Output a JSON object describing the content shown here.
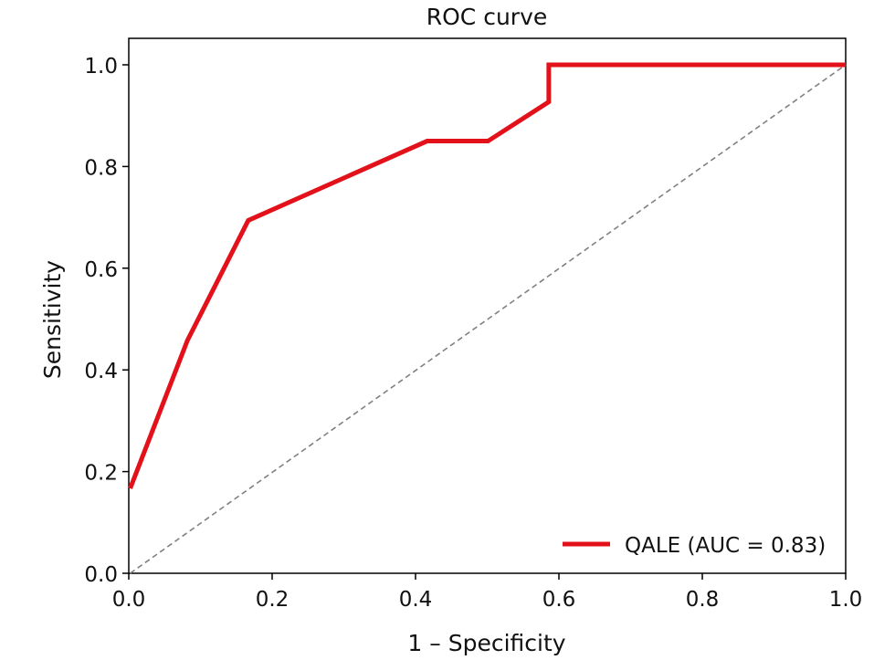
{
  "chart_data": {
    "type": "line",
    "title": "ROC curve",
    "xlabel": "1 – Specificity",
    "ylabel": "Sensitivity",
    "xlim": [
      0.0,
      1.0
    ],
    "ylim": [
      0.0,
      1.0
    ],
    "xticks": [
      "0.0",
      "0.2",
      "0.4",
      "0.6",
      "0.8",
      "1.0"
    ],
    "yticks": [
      "0.0",
      "0.2",
      "0.4",
      "0.6",
      "0.8",
      "1.0"
    ],
    "grid": false,
    "legend_position": "lower-right",
    "series": [
      {
        "name": "QALE (AUC = 0.83)",
        "color": "#e3111a",
        "x": [
          0.0,
          0.08,
          0.165,
          0.415,
          0.5,
          0.585,
          0.585,
          1.0
        ],
        "y": [
          0.167,
          0.458,
          0.694,
          0.85,
          0.85,
          0.927,
          1.0,
          1.0
        ]
      }
    ],
    "reference_line": {
      "style": "dashed",
      "color": "#808080",
      "x": [
        0.0,
        1.0
      ],
      "y": [
        0.0,
        1.0
      ]
    }
  }
}
